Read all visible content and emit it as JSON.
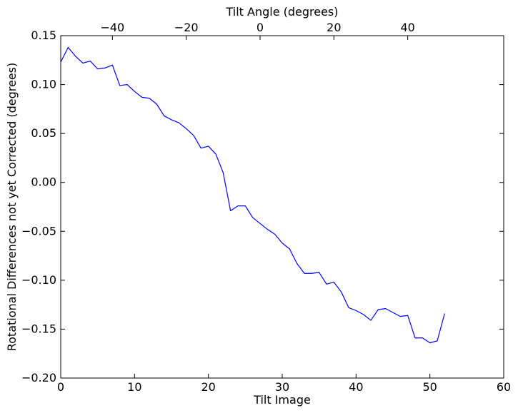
{
  "chart_data": {
    "type": "line",
    "title": "",
    "xlabel": "Tilt Image",
    "ylabel": "Rotational Differences not yet Corrected (degrees)",
    "xlim": [
      0,
      60
    ],
    "ylim": [
      -0.2,
      0.15
    ],
    "x_ticks": [
      0,
      10,
      20,
      30,
      40,
      50,
      60
    ],
    "x_tick_labels": [
      "0",
      "10",
      "20",
      "30",
      "40",
      "50",
      "60"
    ],
    "y_ticks": [
      0.15,
      0.1,
      0.05,
      0.0,
      -0.05,
      -0.1,
      -0.15,
      -0.2
    ],
    "y_tick_labels": [
      "0.15",
      "0.10",
      "0.05",
      "0.00",
      "−0.05",
      "−0.10",
      "−0.15",
      "−0.20"
    ],
    "top_axis": {
      "label": "Tilt Angle (degrees)",
      "ticks": [
        -40,
        -20,
        0,
        20,
        40
      ],
      "tick_labels": [
        "−40",
        "−20",
        "0",
        "20",
        "40"
      ],
      "x_at_angle_zero": 27,
      "images_per_degree": 0.5
    },
    "grid": false,
    "legend": "none",
    "series": [
      {
        "color": "#0000ff",
        "x": [
          0,
          1,
          2,
          3,
          4,
          5,
          6,
          7,
          8,
          9,
          10,
          11,
          12,
          13,
          14,
          15,
          16,
          17,
          18,
          19,
          20,
          21,
          22,
          23,
          24,
          25,
          26,
          27,
          28,
          29,
          30,
          31,
          32,
          33,
          34,
          35,
          36,
          37,
          38,
          39,
          40,
          41,
          42,
          43,
          44,
          45,
          46,
          47,
          48,
          49,
          50,
          51,
          52
        ],
        "values": [
          0.123,
          0.138,
          0.129,
          0.122,
          0.124,
          0.116,
          0.117,
          0.12,
          0.099,
          0.1,
          0.093,
          0.087,
          0.086,
          0.08,
          0.068,
          0.064,
          0.061,
          0.055,
          0.048,
          0.035,
          0.037,
          0.029,
          0.01,
          -0.029,
          -0.024,
          -0.024,
          -0.036,
          -0.042,
          -0.048,
          -0.053,
          -0.062,
          -0.068,
          -0.083,
          -0.093,
          -0.093,
          -0.092,
          -0.104,
          -0.102,
          -0.112,
          -0.128,
          -0.131,
          -0.135,
          -0.141,
          -0.13,
          -0.129,
          -0.133,
          -0.137,
          -0.136,
          -0.159,
          -0.159,
          -0.164,
          -0.162,
          -0.134
        ]
      }
    ]
  }
}
